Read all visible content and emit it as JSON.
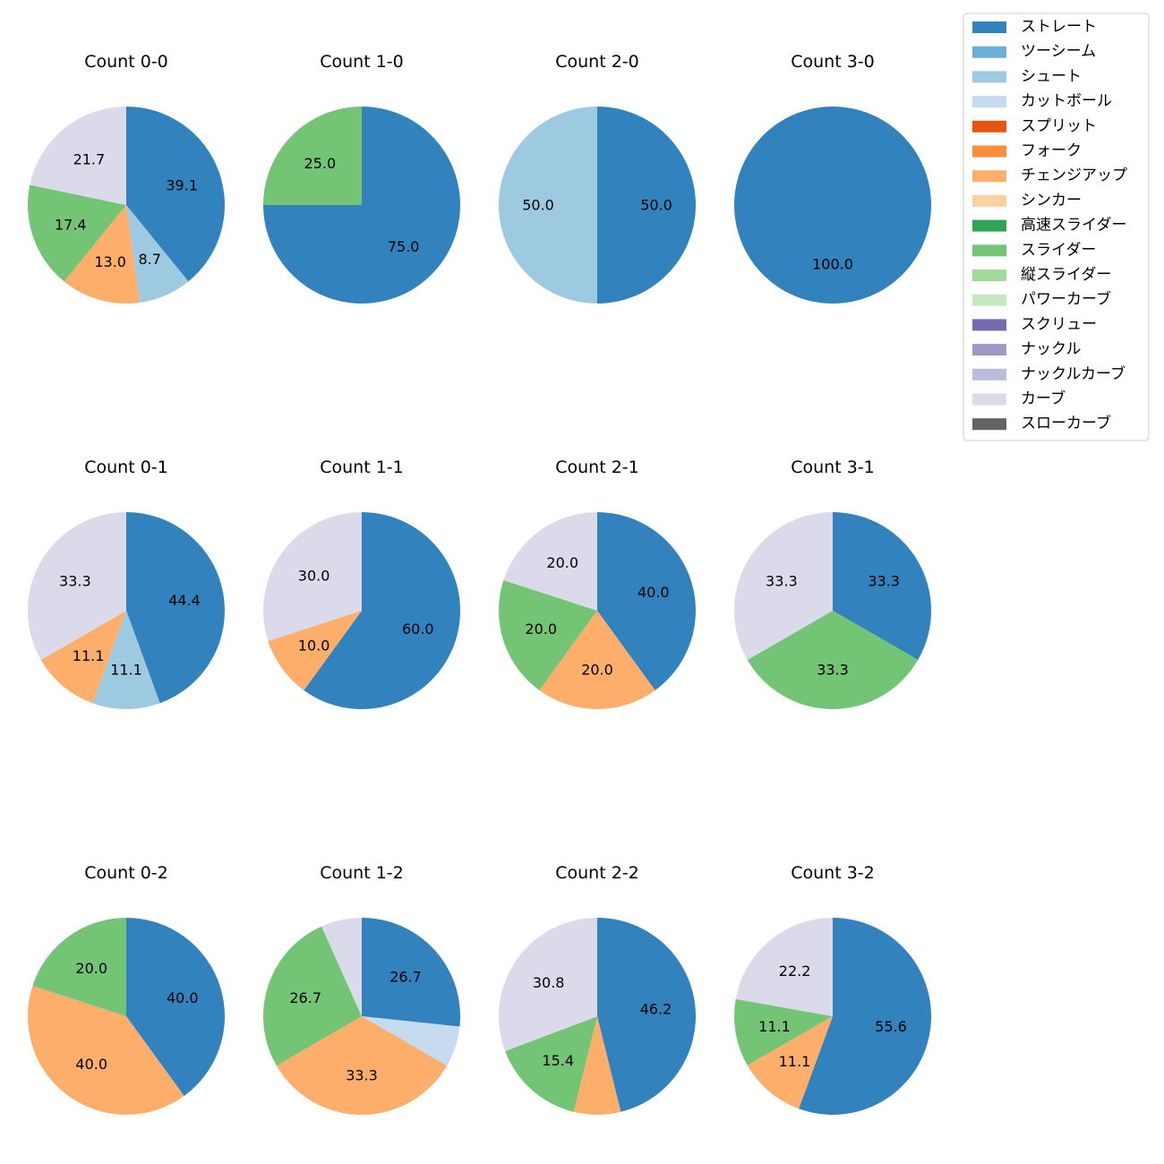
{
  "chart_data": {
    "type": "pie",
    "start_angle": "top, clockwise",
    "legend_placement": "top-right",
    "pitch_types": [
      {
        "name": "ストレート",
        "color": "#3182bd"
      },
      {
        "name": "ツーシーム",
        "color": "#6baed6"
      },
      {
        "name": "シュート",
        "color": "#9ecae1"
      },
      {
        "name": "カットボール",
        "color": "#c6dbef"
      },
      {
        "name": "スプリット",
        "color": "#e6550d"
      },
      {
        "name": "フォーク",
        "color": "#fd8d3c"
      },
      {
        "name": "チェンジアップ",
        "color": "#fdae6b"
      },
      {
        "name": "シンカー",
        "color": "#fdd0a2"
      },
      {
        "name": "高速スライダー",
        "color": "#31a354"
      },
      {
        "name": "スライダー",
        "color": "#74c476"
      },
      {
        "name": "縦スライダー",
        "color": "#a1d99b"
      },
      {
        "name": "パワーカーブ",
        "color": "#c7e9c0"
      },
      {
        "name": "スクリュー",
        "color": "#756bb1"
      },
      {
        "name": "ナックル",
        "color": "#9e9ac8"
      },
      {
        "name": "ナックルカーブ",
        "color": "#bcbddc"
      },
      {
        "name": "カーブ",
        "color": "#dadaeb"
      },
      {
        "name": "スローカーブ",
        "color": "#636363"
      }
    ],
    "pies": [
      {
        "title": "Count 0-0",
        "slices": [
          {
            "pitch": "ストレート",
            "value": 39.1,
            "label": "39.1"
          },
          {
            "pitch": "シュート",
            "value": 8.7,
            "label": "8.7"
          },
          {
            "pitch": "チェンジアップ",
            "value": 13.0,
            "label": "13.0"
          },
          {
            "pitch": "スライダー",
            "value": 17.4,
            "label": "17.4"
          },
          {
            "pitch": "カーブ",
            "value": 21.7,
            "label": "21.7"
          }
        ]
      },
      {
        "title": "Count 1-0",
        "slices": [
          {
            "pitch": "ストレート",
            "value": 75.0,
            "label": "75.0"
          },
          {
            "pitch": "スライダー",
            "value": 25.0,
            "label": "25.0"
          }
        ]
      },
      {
        "title": "Count 2-0",
        "slices": [
          {
            "pitch": "ストレート",
            "value": 50.0,
            "label": "50.0"
          },
          {
            "pitch": "シュート",
            "value": 50.0,
            "label": "50.0"
          }
        ]
      },
      {
        "title": "Count 3-0",
        "slices": [
          {
            "pitch": "ストレート",
            "value": 100.0,
            "label": "100.0"
          }
        ]
      },
      {
        "title": "Count 0-1",
        "slices": [
          {
            "pitch": "ストレート",
            "value": 44.4,
            "label": "44.4"
          },
          {
            "pitch": "シュート",
            "value": 11.1,
            "label": "11.1"
          },
          {
            "pitch": "チェンジアップ",
            "value": 11.1,
            "label": "11.1"
          },
          {
            "pitch": "カーブ",
            "value": 33.3,
            "label": "33.3"
          }
        ]
      },
      {
        "title": "Count 1-1",
        "slices": [
          {
            "pitch": "ストレート",
            "value": 60.0,
            "label": "60.0"
          },
          {
            "pitch": "チェンジアップ",
            "value": 10.0,
            "label": "10.0"
          },
          {
            "pitch": "カーブ",
            "value": 30.0,
            "label": "30.0"
          }
        ]
      },
      {
        "title": "Count 2-1",
        "slices": [
          {
            "pitch": "ストレート",
            "value": 40.0,
            "label": "40.0"
          },
          {
            "pitch": "チェンジアップ",
            "value": 20.0,
            "label": "20.0"
          },
          {
            "pitch": "スライダー",
            "value": 20.0,
            "label": "20.0"
          },
          {
            "pitch": "カーブ",
            "value": 20.0,
            "label": "20.0"
          }
        ]
      },
      {
        "title": "Count 3-1",
        "slices": [
          {
            "pitch": "ストレート",
            "value": 33.3,
            "label": "33.3"
          },
          {
            "pitch": "スライダー",
            "value": 33.3,
            "label": "33.3"
          },
          {
            "pitch": "カーブ",
            "value": 33.3,
            "label": "33.3"
          }
        ]
      },
      {
        "title": "Count 0-2",
        "slices": [
          {
            "pitch": "ストレート",
            "value": 40.0,
            "label": "40.0"
          },
          {
            "pitch": "チェンジアップ",
            "value": 40.0,
            "label": "40.0"
          },
          {
            "pitch": "スライダー",
            "value": 20.0,
            "label": "20.0"
          }
        ]
      },
      {
        "title": "Count 1-2",
        "slices": [
          {
            "pitch": "ストレート",
            "value": 26.7,
            "label": "26.7"
          },
          {
            "pitch": "カットボール",
            "value": 6.7,
            "label": ""
          },
          {
            "pitch": "チェンジアップ",
            "value": 33.3,
            "label": "33.3"
          },
          {
            "pitch": "スライダー",
            "value": 26.7,
            "label": "26.7"
          },
          {
            "pitch": "カーブ",
            "value": 6.7,
            "label": ""
          }
        ]
      },
      {
        "title": "Count 2-2",
        "slices": [
          {
            "pitch": "ストレート",
            "value": 46.2,
            "label": "46.2"
          },
          {
            "pitch": "チェンジアップ",
            "value": 7.7,
            "label": ""
          },
          {
            "pitch": "スライダー",
            "value": 15.4,
            "label": "15.4"
          },
          {
            "pitch": "カーブ",
            "value": 30.8,
            "label": "30.8"
          }
        ]
      },
      {
        "title": "Count 3-2",
        "slices": [
          {
            "pitch": "ストレート",
            "value": 55.6,
            "label": "55.6"
          },
          {
            "pitch": "チェンジアップ",
            "value": 11.1,
            "label": "11.1"
          },
          {
            "pitch": "スライダー",
            "value": 11.1,
            "label": "11.1"
          },
          {
            "pitch": "カーブ",
            "value": 22.2,
            "label": "22.2"
          }
        ]
      }
    ]
  }
}
